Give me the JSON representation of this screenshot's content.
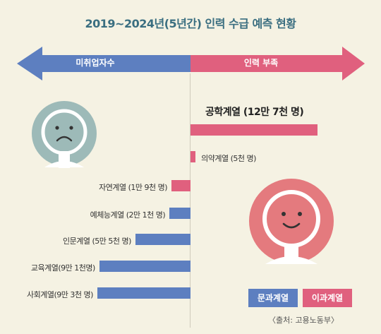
{
  "title": "2019~2024년(5년간) 인력 수급 예측 현황",
  "arrows": {
    "left_label": "미취업자수",
    "right_label": "인력 부족"
  },
  "legend": {
    "liberal": "문과계열",
    "science": "이과계열"
  },
  "source": "〈출처: 고용노동부〉",
  "colors": {
    "science": "#e0607e",
    "liberal": "#5d7fc0",
    "title": "#3a6e80"
  },
  "chart_data": {
    "type": "bar",
    "orientation": "horizontal-diverging",
    "unit": "명",
    "categories": [
      "공학계열",
      "의약계열",
      "자연계열",
      "예체능계열",
      "인문계열",
      "교육계열",
      "사회계열"
    ],
    "series": [
      {
        "name": "이과계열",
        "direction": "인력 부족",
        "values": [
          127000,
          5000,
          null,
          null,
          null,
          null,
          null
        ]
      },
      {
        "name": "이과계열",
        "direction": "미취업자수",
        "values": [
          null,
          null,
          19000,
          null,
          null,
          null,
          null
        ]
      },
      {
        "name": "문과계열",
        "direction": "미취업자수",
        "values": [
          null,
          null,
          null,
          21000,
          55000,
          91000,
          93000
        ]
      }
    ],
    "labels": [
      "공학계열 (12만 7천 명)",
      "의약계열 (5천 명)",
      "자연계열 (1만 9천 명)",
      "예체능계열 (2만 1천 명)",
      "인문계열 (5만 5천 명)",
      "교육계열(9만 1천명)",
      "사회계열(9만 3천 명)"
    ]
  }
}
